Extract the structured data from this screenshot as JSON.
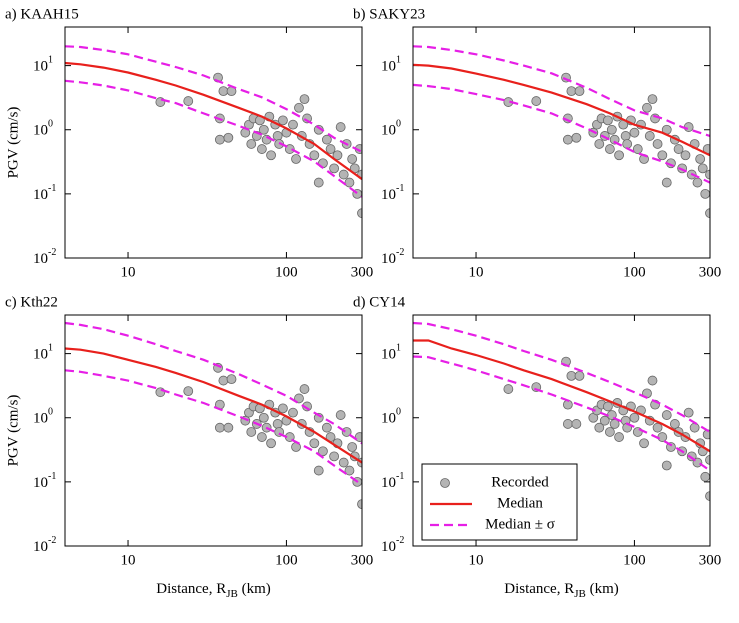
{
  "chart_data": [
    {
      "type": "line",
      "title": "a) KAAH15",
      "ylabel": "PGV (cm/s)",
      "xscale": "log",
      "yscale": "log",
      "xlim": [
        4,
        300
      ],
      "ylim": [
        0.01,
        40
      ],
      "xticks": [
        10,
        100,
        300
      ],
      "yticks": [
        {
          "value": 0.01,
          "label": "10",
          "exponent": "-2"
        },
        {
          "value": 0.1,
          "label": "10",
          "exponent": "-1"
        },
        {
          "value": 1,
          "label": "10",
          "exponent": "0"
        },
        {
          "value": 10,
          "label": "10",
          "exponent": "1"
        }
      ],
      "x": [
        4,
        5,
        7,
        10,
        15,
        20,
        30,
        50,
        70,
        100,
        150,
        200,
        300
      ],
      "median": {
        "color": "#e8201c",
        "values": [
          11,
          10.5,
          9.3,
          7.8,
          6,
          4.9,
          3.5,
          2.2,
          1.6,
          1.05,
          0.6,
          0.35,
          0.17
        ]
      },
      "upper": {
        "color": "#e61fe6",
        "values": [
          20,
          19.5,
          17.5,
          15,
          11.5,
          9.5,
          7,
          4.3,
          3.2,
          2.1,
          1.2,
          0.75,
          0.45
        ]
      },
      "lower": {
        "color": "#e61fe6",
        "values": [
          5.8,
          5.5,
          4.9,
          4.1,
          3.1,
          2.6,
          1.8,
          1.15,
          0.84,
          0.55,
          0.32,
          0.19,
          0.09
        ]
      },
      "scatter": {
        "color": "#b4b4b4",
        "x": [
          16,
          24,
          37,
          38,
          38,
          43,
          40,
          45,
          55,
          58,
          60,
          62,
          65,
          68,
          70,
          72,
          75,
          78,
          80,
          85,
          88,
          90,
          95,
          100,
          105,
          110,
          115,
          120,
          125,
          130,
          135,
          140,
          150,
          160,
          170,
          180,
          190,
          200,
          210,
          220,
          230,
          240,
          250,
          260,
          270,
          280,
          290,
          300,
          300,
          160
        ],
        "y": [
          2.7,
          2.8,
          6.5,
          1.5,
          0.7,
          0.75,
          4,
          4,
          0.9,
          1.2,
          0.6,
          1.5,
          0.8,
          1.4,
          0.5,
          1,
          0.7,
          1.6,
          0.4,
          1.2,
          0.8,
          0.6,
          1.4,
          0.9,
          0.5,
          1.2,
          0.35,
          2.2,
          0.8,
          3,
          1.5,
          0.6,
          0.4,
          1,
          0.3,
          0.7,
          0.5,
          0.25,
          0.4,
          1.1,
          0.2,
          0.6,
          0.15,
          0.35,
          0.25,
          0.1,
          0.5,
          0.05,
          0.2,
          0.15
        ]
      }
    },
    {
      "type": "line",
      "title": "b) SAKY23",
      "xscale": "log",
      "yscale": "log",
      "xlim": [
        4,
        300
      ],
      "ylim": [
        0.01,
        40
      ],
      "xticks": [
        10,
        100,
        300
      ],
      "yticks": [
        {
          "value": 0.01,
          "label": "10",
          "exponent": "-2"
        },
        {
          "value": 0.1,
          "label": "10",
          "exponent": "-1"
        },
        {
          "value": 1,
          "label": "10",
          "exponent": "0"
        },
        {
          "value": 10,
          "label": "10",
          "exponent": "1"
        }
      ],
      "x": [
        4,
        5,
        7,
        10,
        15,
        20,
        30,
        50,
        70,
        100,
        150,
        200,
        300
      ],
      "median": {
        "color": "#e8201c",
        "values": [
          10.3,
          10,
          9,
          7.5,
          6,
          5,
          3.8,
          2.5,
          1.8,
          1.2,
          0.9,
          0.65,
          0.4
        ]
      },
      "upper": {
        "color": "#e61fe6",
        "values": [
          20,
          19.5,
          17.5,
          15,
          12,
          10,
          7.6,
          4.5,
          3,
          2,
          1.5,
          1.1,
          0.8
        ]
      },
      "lower": {
        "color": "#e61fe6",
        "values": [
          5,
          4.8,
          4.3,
          3.6,
          2.9,
          2.4,
          1.8,
          1.05,
          0.7,
          0.45,
          0.32,
          0.24,
          0.15
        ]
      },
      "scatter": {
        "color": "#b4b4b4",
        "x": [
          16,
          24,
          37,
          38,
          38,
          43,
          40,
          45,
          55,
          58,
          60,
          62,
          65,
          68,
          70,
          72,
          75,
          78,
          80,
          85,
          88,
          90,
          95,
          100,
          105,
          110,
          115,
          120,
          125,
          130,
          135,
          140,
          150,
          160,
          170,
          180,
          190,
          200,
          210,
          220,
          230,
          240,
          250,
          260,
          270,
          280,
          290,
          300,
          300,
          160
        ],
        "y": [
          2.7,
          2.8,
          6.5,
          1.5,
          0.7,
          0.75,
          4,
          4,
          0.9,
          1.2,
          0.6,
          1.5,
          0.8,
          1.4,
          0.5,
          1,
          0.7,
          1.6,
          0.4,
          1.2,
          0.8,
          0.6,
          1.4,
          0.9,
          0.5,
          1.2,
          0.35,
          2.2,
          0.8,
          3,
          1.5,
          0.6,
          0.4,
          1,
          0.3,
          0.7,
          0.5,
          0.25,
          0.4,
          1.1,
          0.2,
          0.6,
          0.15,
          0.35,
          0.25,
          0.1,
          0.5,
          0.05,
          0.2,
          0.15
        ]
      }
    },
    {
      "type": "line",
      "title": "c) Kth22",
      "ylabel": "PGV (cm/s)",
      "xlabel": [
        "Distance, R",
        "JB",
        " (km)"
      ],
      "xscale": "log",
      "yscale": "log",
      "xlim": [
        4,
        300
      ],
      "ylim": [
        0.01,
        40
      ],
      "xticks": [
        10,
        100,
        300
      ],
      "yticks": [
        {
          "value": 0.01,
          "label": "10",
          "exponent": "-2"
        },
        {
          "value": 0.1,
          "label": "10",
          "exponent": "-1"
        },
        {
          "value": 1,
          "label": "10",
          "exponent": "0"
        },
        {
          "value": 10,
          "label": "10",
          "exponent": "1"
        }
      ],
      "x": [
        4,
        5,
        7,
        10,
        15,
        20,
        30,
        50,
        70,
        100,
        150,
        200,
        300
      ],
      "median": {
        "color": "#e8201c",
        "values": [
          12,
          11.5,
          10,
          8,
          6.2,
          5,
          3.6,
          2.2,
          1.6,
          1.05,
          0.6,
          0.38,
          0.2
        ]
      },
      "upper": {
        "color": "#e61fe6",
        "values": [
          30,
          28,
          24,
          19,
          14,
          11,
          8,
          4.8,
          3.3,
          2.2,
          1.2,
          0.8,
          0.4
        ]
      },
      "lower": {
        "color": "#e61fe6",
        "values": [
          5.5,
          5.2,
          4.5,
          3.8,
          2.9,
          2.3,
          1.7,
          1.05,
          0.75,
          0.5,
          0.3,
          0.18,
          0.09
        ]
      },
      "scatter": {
        "color": "#b4b4b4",
        "x": [
          16,
          24,
          37,
          38,
          38,
          43,
          40,
          45,
          55,
          58,
          60,
          62,
          65,
          68,
          70,
          72,
          75,
          78,
          80,
          85,
          88,
          90,
          95,
          100,
          105,
          110,
          115,
          120,
          125,
          130,
          135,
          140,
          150,
          160,
          170,
          180,
          190,
          200,
          210,
          220,
          230,
          240,
          250,
          260,
          270,
          280,
          290,
          300,
          300,
          160
        ],
        "y": [
          2.5,
          2.6,
          6,
          1.6,
          0.7,
          0.7,
          3.8,
          4,
          0.9,
          1.2,
          0.6,
          1.5,
          0.8,
          1.4,
          0.5,
          1,
          0.7,
          1.6,
          0.4,
          1.2,
          0.8,
          0.6,
          1.4,
          0.9,
          0.5,
          1.2,
          0.35,
          2,
          0.8,
          2.8,
          1.5,
          0.6,
          0.4,
          1,
          0.3,
          0.7,
          0.5,
          0.25,
          0.4,
          1.1,
          0.2,
          0.6,
          0.15,
          0.35,
          0.25,
          0.1,
          0.5,
          0.045,
          0.2,
          0.15
        ]
      }
    },
    {
      "type": "line",
      "title": "d) CY14",
      "xlabel": [
        "Distance, R",
        "JB",
        " (km)"
      ],
      "xscale": "log",
      "yscale": "log",
      "xlim": [
        4,
        300
      ],
      "ylim": [
        0.01,
        40
      ],
      "xticks": [
        10,
        100,
        300
      ],
      "yticks": [
        {
          "value": 0.01,
          "label": "10",
          "exponent": "-2"
        },
        {
          "value": 0.1,
          "label": "10",
          "exponent": "-1"
        },
        {
          "value": 1,
          "label": "10",
          "exponent": "0"
        },
        {
          "value": 10,
          "label": "10",
          "exponent": "1"
        }
      ],
      "x": [
        4,
        5,
        7,
        10,
        15,
        20,
        30,
        50,
        70,
        100,
        150,
        200,
        300
      ],
      "median": {
        "color": "#e8201c",
        "values": [
          16,
          16,
          12,
          9.5,
          7,
          5.5,
          4,
          2.5,
          1.8,
          1.25,
          0.8,
          0.55,
          0.3
        ]
      },
      "upper": {
        "color": "#e61fe6",
        "values": [
          30,
          29,
          24,
          19,
          14,
          11,
          8,
          5,
          3.6,
          2.5,
          1.6,
          1.1,
          0.6
        ]
      },
      "lower": {
        "color": "#e61fe6",
        "values": [
          9,
          8.8,
          7,
          5.5,
          4,
          3.2,
          2.3,
          1.45,
          1.05,
          0.72,
          0.45,
          0.3,
          0.15
        ]
      },
      "scatter": {
        "color": "#b4b4b4",
        "x": [
          16,
          24,
          37,
          38,
          38,
          43,
          40,
          45,
          55,
          58,
          60,
          62,
          65,
          68,
          70,
          72,
          75,
          78,
          80,
          85,
          88,
          90,
          95,
          100,
          105,
          110,
          115,
          120,
          125,
          130,
          135,
          140,
          150,
          160,
          170,
          180,
          190,
          200,
          210,
          220,
          230,
          240,
          250,
          260,
          270,
          280,
          290,
          300,
          300,
          160
        ],
        "y": [
          2.8,
          3,
          7.5,
          1.6,
          0.8,
          0.8,
          4.5,
          4.5,
          1,
          1.3,
          0.7,
          1.6,
          0.9,
          1.5,
          0.6,
          1.1,
          0.8,
          1.7,
          0.5,
          1.3,
          0.9,
          0.7,
          1.5,
          1,
          0.6,
          1.3,
          0.4,
          2.4,
          0.9,
          3.8,
          1.6,
          0.7,
          0.5,
          1.1,
          0.35,
          0.8,
          0.6,
          0.3,
          0.5,
          1.2,
          0.25,
          0.7,
          0.2,
          0.4,
          0.3,
          0.12,
          0.55,
          0.06,
          0.22,
          0.18
        ]
      },
      "legend": {
        "corner": "lower left",
        "entries": [
          "Recorded",
          "Median",
          "Median ± σ"
        ]
      }
    }
  ]
}
